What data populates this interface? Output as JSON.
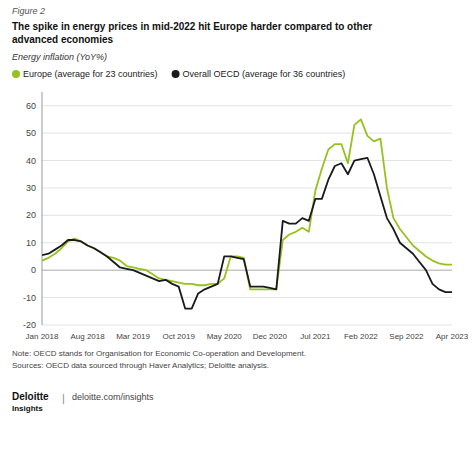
{
  "chart_data": {
    "type": "line",
    "title": "The spike in energy prices in mid-2022 hit Europe harder compared to other\nadvanced economies",
    "ylabel": "Energy inflation (YoY%)",
    "annotations": [
      "Figure 2",
      "Note: OECD stands for Organisation for Economic Co-operation and Development.",
      "Sources: OECD data sourced through Haver Analytics; Deloitte analysis.",
      "Deloitte",
      "Insights",
      "|",
      "deloitte.com/insights"
    ],
    "categories": [
      "Jan 2018",
      null,
      null,
      null,
      null,
      null,
      null,
      "Aug 2018",
      null,
      null,
      null,
      null,
      null,
      null,
      "Mar 2019",
      null,
      null,
      null,
      null,
      null,
      null,
      "Oct 2019",
      null,
      null,
      null,
      null,
      null,
      null,
      "May 2020",
      null,
      null,
      null,
      null,
      null,
      null,
      "Dec 2020",
      null,
      null,
      null,
      null,
      null,
      null,
      "Jul 2021",
      null,
      null,
      null,
      null,
      null,
      null,
      "Feb 2022",
      null,
      null,
      null,
      null,
      null,
      null,
      "Sep 2022",
      null,
      null,
      null,
      null,
      null,
      null,
      "Apr 2023"
    ],
    "series": [
      {
        "name": "Europe (average for 23 countries)",
        "color": "#96c11f",
        "values": [
          3.5,
          4.5,
          6,
          8,
          10.5,
          11.5,
          10.5,
          9,
          8,
          6.5,
          5,
          4.5,
          3.5,
          1.5,
          1,
          0.5,
          0,
          -1.5,
          -3,
          -3.5,
          -4,
          -4.5,
          -5,
          -5,
          -5.5,
          -5.5,
          -5,
          -5,
          -3,
          5,
          5,
          4.5,
          -7,
          -7,
          -7,
          -7,
          -7,
          11,
          13,
          14,
          15.5,
          14,
          29,
          37,
          44,
          46,
          46,
          39,
          53,
          55,
          49,
          47,
          48,
          30,
          19,
          15,
          12,
          9,
          7,
          5,
          3.5,
          2.5,
          2,
          2
        ]
      },
      {
        "name": "Overall OECD (average for 36 countries)",
        "color": "#1a1a1a",
        "values": [
          5.5,
          6,
          7.5,
          9,
          11,
          11,
          10.5,
          9,
          8,
          6.5,
          5,
          3,
          1,
          0.5,
          0,
          -1,
          -2,
          -3,
          -4,
          -3.5,
          -5,
          -6,
          -14,
          -14,
          -8.5,
          -7,
          -6,
          -5,
          5,
          5,
          4.5,
          4,
          -6,
          -6,
          -6,
          -6.5,
          -7,
          18,
          17,
          17,
          19,
          18,
          26,
          26,
          33,
          38,
          39,
          35,
          40,
          40.5,
          41,
          35,
          27,
          19,
          15,
          10,
          8,
          6,
          3,
          0,
          -5,
          -7,
          -8,
          -8
        ]
      }
    ],
    "ylim": [
      -20,
      65
    ],
    "yticks": [
      -20,
      -10,
      0,
      10,
      20,
      30,
      40,
      50,
      60
    ],
    "grid": true,
    "legend": "top-left"
  }
}
